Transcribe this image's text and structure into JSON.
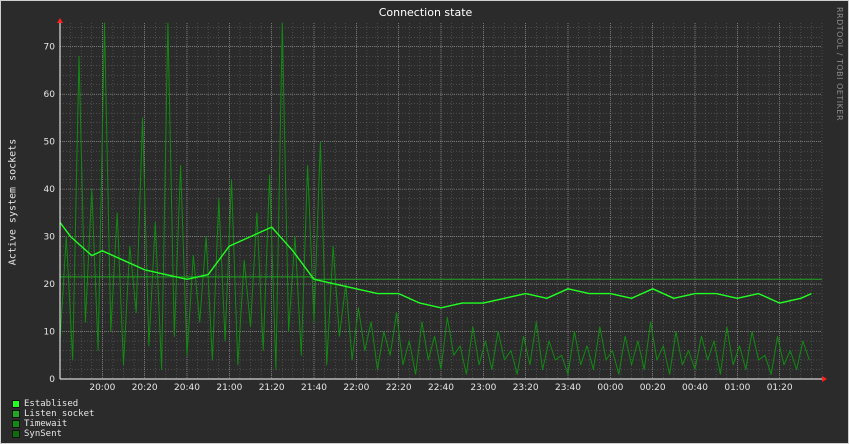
{
  "chart_data": {
    "type": "line",
    "title": "Connection state",
    "ylabel": "Active system sockets",
    "watermark": "RRDTOOL / TOBI OETIKER",
    "ylim": [
      0,
      75
    ],
    "yticks": [
      0,
      10,
      20,
      30,
      40,
      50,
      60,
      70
    ],
    "x_tick_labels": [
      "20:00",
      "20:20",
      "20:40",
      "21:00",
      "21:20",
      "21:40",
      "22:00",
      "22:20",
      "22:40",
      "23:00",
      "23:20",
      "23:40",
      "00:00",
      "00:20",
      "00:40",
      "01:00",
      "01:20"
    ],
    "x_minutes": [
      0,
      20,
      40,
      60,
      80,
      100,
      120,
      140,
      160,
      180,
      200,
      220,
      240,
      260,
      280,
      300,
      320
    ],
    "xlim_minutes": [
      -20,
      340
    ],
    "grid": true,
    "legend_position": "bottom-left",
    "colors": {
      "background": "#2b2b2b",
      "grid": "#9a9a9a",
      "axis": "#ffffff",
      "arrow": "#ff2020"
    },
    "series": [
      {
        "name": "Establised",
        "color": "#22ff22",
        "x": [
          -20,
          -15,
          -10,
          -5,
          0,
          10,
          20,
          30,
          40,
          50,
          60,
          70,
          80,
          90,
          100,
          110,
          120,
          130,
          140,
          150,
          160,
          170,
          180,
          190,
          200,
          210,
          220,
          230,
          240,
          250,
          260,
          270,
          280,
          290,
          300,
          310,
          320,
          330,
          335
        ],
        "y": [
          33,
          30,
          28,
          26,
          27,
          25,
          23,
          22,
          21,
          22,
          28,
          30,
          32,
          27,
          21,
          20,
          19,
          18,
          18,
          16,
          15,
          16,
          16,
          17,
          18,
          17,
          19,
          18,
          18,
          17,
          19,
          17,
          18,
          18,
          17,
          18,
          16,
          17,
          18
        ]
      },
      {
        "name": "Listen socket",
        "color": "#1fa81f",
        "x": [
          -20,
          98,
          100,
          340
        ],
        "y": [
          21.5,
          21.5,
          21,
          21
        ]
      },
      {
        "name": "Timewait",
        "color": "#118a11",
        "x": [
          -20,
          -17,
          -14,
          -11,
          -8,
          -5,
          -2,
          1,
          4,
          7,
          10,
          13,
          16,
          19,
          22,
          25,
          28,
          31,
          34,
          37,
          40,
          43,
          46,
          49,
          52,
          55,
          58,
          61,
          64,
          67,
          70,
          73,
          76,
          79,
          82,
          85,
          88,
          91,
          94,
          97,
          100,
          103,
          106,
          109,
          112,
          115,
          118,
          121,
          124,
          127,
          130,
          133,
          136,
          139,
          142,
          145,
          148,
          151,
          154,
          157,
          160,
          163,
          166,
          169,
          172,
          175,
          178,
          181,
          184,
          187,
          190,
          193,
          196,
          199,
          202,
          205,
          208,
          211,
          214,
          217,
          220,
          223,
          226,
          229,
          232,
          235,
          238,
          241,
          244,
          247,
          250,
          253,
          256,
          259,
          262,
          265,
          268,
          271,
          274,
          277,
          280,
          283,
          286,
          289,
          292,
          295,
          298,
          301,
          304,
          307,
          310,
          313,
          316,
          319,
          322,
          325,
          328,
          331,
          334
        ],
        "y": [
          8,
          30,
          4,
          68,
          12,
          40,
          6,
          75,
          10,
          35,
          3,
          28,
          14,
          55,
          7,
          33,
          2,
          75,
          9,
          45,
          5,
          26,
          12,
          30,
          4,
          38,
          8,
          42,
          3,
          25,
          11,
          35,
          6,
          43,
          2,
          75,
          10,
          30,
          5,
          45,
          12,
          50,
          3,
          28,
          9,
          20,
          4,
          15,
          6,
          12,
          2,
          10,
          5,
          14,
          3,
          8,
          1,
          12,
          4,
          9,
          2,
          13,
          5,
          7,
          1,
          11,
          3,
          8,
          2,
          10,
          4,
          6,
          1,
          9,
          3,
          12,
          2,
          8,
          4,
          5,
          1,
          10,
          3,
          7,
          2,
          11,
          4,
          6,
          1,
          9,
          3,
          8,
          2,
          12,
          4,
          7,
          1,
          10,
          3,
          6,
          2,
          9,
          4,
          8,
          1,
          11,
          3,
          7,
          2,
          10,
          4,
          5,
          1,
          9,
          3,
          6,
          2,
          8,
          4
        ]
      },
      {
        "name": "SynSent",
        "color": "#0e6e0e",
        "x": [
          -20,
          340
        ],
        "y": [
          0,
          0
        ]
      }
    ]
  },
  "legend": {
    "items": [
      {
        "label": "Establised",
        "color": "#22ff22"
      },
      {
        "label": "Listen socket",
        "color": "#1fa81f"
      },
      {
        "label": "Timewait",
        "color": "#118a11"
      },
      {
        "label": "SynSent",
        "color": "#0e6e0e"
      }
    ]
  }
}
